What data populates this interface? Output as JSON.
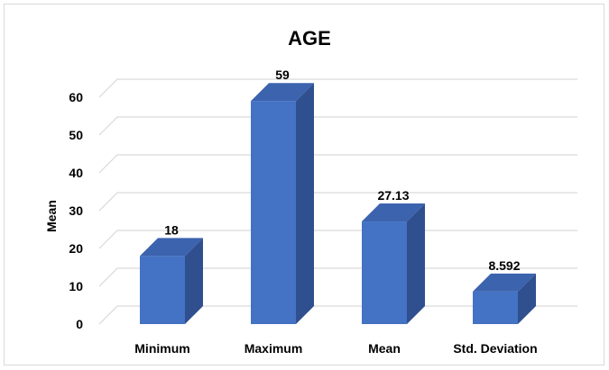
{
  "chart_data": {
    "type": "bar",
    "title": "AGE",
    "xlabel": "",
    "ylabel": "Mean",
    "categories": [
      "Minimum",
      "Maximum",
      "Mean",
      "Std. Deviation"
    ],
    "values": [
      18,
      59,
      27.13,
      8.592
    ],
    "data_labels": [
      "18",
      "59",
      "27.13",
      "8.592"
    ],
    "ylim": [
      0,
      60
    ],
    "yticks": [
      "0",
      "10",
      "20",
      "30",
      "40",
      "50",
      "60"
    ],
    "grid": true,
    "style": "3d-column",
    "colors": {
      "bar_front": "#4472c4",
      "bar_side": "#2f4f8f",
      "bar_top": "#3c63ad",
      "gridline": "#d9d9d9"
    }
  }
}
